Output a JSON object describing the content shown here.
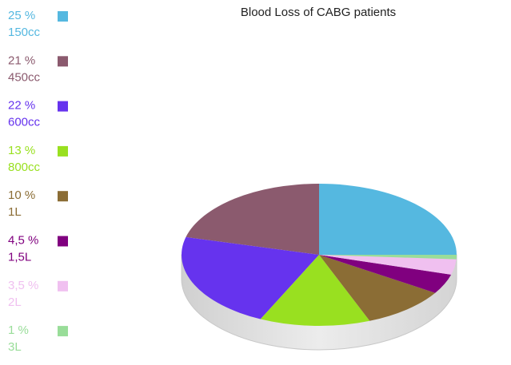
{
  "chart_data": {
    "type": "pie",
    "title": "Blood Loss of CABG patients",
    "categories": [
      "150cc",
      "450cc",
      "600cc",
      "800cc",
      "1L",
      "1,5L",
      "2L",
      "3L"
    ],
    "values": [
      25,
      21,
      22,
      13,
      10,
      4.5,
      3.5,
      1
    ],
    "value_labels": [
      "25 %",
      "21 %",
      "22 %",
      "13 %",
      "10 %",
      "4,5 %",
      "3,5 %",
      "1 %"
    ],
    "colors": [
      "#55b8e0",
      "#8b5a6e",
      "#6633ee",
      "#99e020",
      "#8b6d35",
      "#80007f",
      "#f0c0f0",
      "#99dd99"
    ],
    "legend": "left"
  }
}
